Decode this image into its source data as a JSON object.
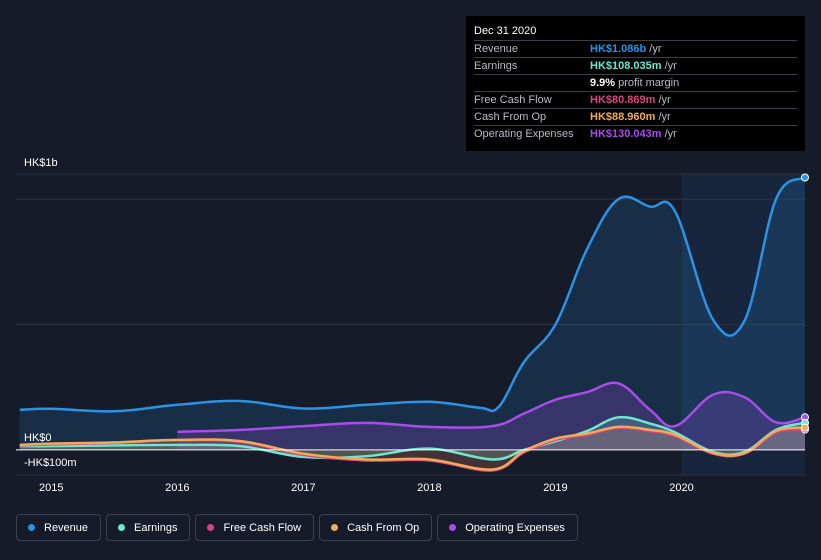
{
  "tooltip": {
    "date": "Dec 31 2020",
    "rows": [
      {
        "label": "Revenue",
        "value": "HK$1.086b",
        "unit": "/yr",
        "color": "#2a93e6"
      },
      {
        "label": "Earnings",
        "value": "HK$108.035m",
        "unit": "/yr",
        "color": "#6ee6d0"
      },
      {
        "label": "",
        "value": "9.9%",
        "unit": "profit margin",
        "color": "#ffffff"
      },
      {
        "label": "Free Cash Flow",
        "value": "HK$80.869m",
        "unit": "/yr",
        "color": "#d8467f"
      },
      {
        "label": "Cash From Op",
        "value": "HK$88.960m",
        "unit": "/yr",
        "color": "#f0aa5a"
      },
      {
        "label": "Operating Expenses",
        "value": "HK$130.043m",
        "unit": "/yr",
        "color": "#a94de8"
      }
    ]
  },
  "legend": [
    {
      "label": "Revenue",
      "color": "#2a93e6"
    },
    {
      "label": "Earnings",
      "color": "#6ee6d0"
    },
    {
      "label": "Free Cash Flow",
      "color": "#d8467f"
    },
    {
      "label": "Cash From Op",
      "color": "#f0aa5a"
    },
    {
      "label": "Operating Expenses",
      "color": "#a94de8"
    }
  ],
  "chart_data": {
    "type": "line",
    "y_labels": [
      "HK$1b",
      "HK$0",
      "-HK$100m"
    ],
    "x_ticks": [
      "2015",
      "2016",
      "2017",
      "2018",
      "2019",
      "2020"
    ],
    "ylim": [
      -100,
      1100
    ],
    "xlim": [
      2014.72,
      2020.98
    ],
    "forecast_start": 2020.0,
    "unit": "HK$m",
    "series": [
      {
        "name": "Revenue",
        "color": "#2a93e6",
        "fill": true,
        "x": [
          2014.75,
          2015.0,
          2015.5,
          2016.0,
          2016.5,
          2017.0,
          2017.5,
          2018.0,
          2018.4,
          2018.55,
          2018.75,
          2019.0,
          2019.25,
          2019.5,
          2019.75,
          2019.95,
          2020.25,
          2020.5,
          2020.75,
          2020.98
        ],
        "y": [
          160,
          164,
          154,
          180,
          195,
          165,
          180,
          192,
          168,
          172,
          350,
          500,
          800,
          1000,
          970,
          950,
          520,
          515,
          1000,
          1086
        ]
      },
      {
        "name": "Operating Expenses",
        "color": "#a94de8",
        "fill": true,
        "x": [
          2016.0,
          2016.5,
          2017.0,
          2017.5,
          2018.0,
          2018.5,
          2018.75,
          2019.0,
          2019.25,
          2019.5,
          2019.75,
          2019.95,
          2020.25,
          2020.5,
          2020.75,
          2020.98
        ],
        "y": [
          72,
          80,
          95,
          108,
          92,
          95,
          145,
          200,
          230,
          265,
          160,
          95,
          220,
          210,
          110,
          130
        ]
      },
      {
        "name": "Earnings",
        "color": "#6ee6d0",
        "fill": true,
        "x": [
          2014.75,
          2015.0,
          2015.5,
          2016.0,
          2016.5,
          2017.0,
          2017.5,
          2018.0,
          2018.5,
          2018.75,
          2019.0,
          2019.25,
          2019.5,
          2019.75,
          2019.95,
          2020.25,
          2020.5,
          2020.75,
          2020.98
        ],
        "y": [
          15,
          15,
          18,
          20,
          15,
          -28,
          -25,
          5,
          -38,
          0,
          35,
          75,
          130,
          105,
          70,
          -8,
          -8,
          80,
          108
        ]
      },
      {
        "name": "Free Cash Flow",
        "color": "#d8467f",
        "fill": false,
        "x": [
          2014.75,
          2015.0,
          2015.5,
          2016.0,
          2016.5,
          2017.0,
          2017.5,
          2018.0,
          2018.5,
          2018.75,
          2019.0,
          2019.25,
          2019.5,
          2019.75,
          2019.95,
          2020.25,
          2020.5,
          2020.75,
          2020.98
        ],
        "y": [
          18,
          22,
          28,
          38,
          32,
          -20,
          -42,
          -42,
          -82,
          -10,
          40,
          60,
          88,
          75,
          55,
          -15,
          -15,
          70,
          81
        ]
      },
      {
        "name": "Cash From Op",
        "color": "#f0aa5a",
        "fill": false,
        "x": [
          2014.75,
          2015.0,
          2015.5,
          2016.0,
          2016.5,
          2017.0,
          2017.5,
          2018.0,
          2018.5,
          2018.75,
          2019.0,
          2019.25,
          2019.5,
          2019.75,
          2019.95,
          2020.25,
          2020.5,
          2020.75,
          2020.98
        ],
        "y": [
          20,
          25,
          30,
          40,
          35,
          -15,
          -38,
          -38,
          -78,
          -5,
          45,
          65,
          92,
          80,
          60,
          -12,
          -12,
          75,
          89
        ]
      }
    ]
  }
}
